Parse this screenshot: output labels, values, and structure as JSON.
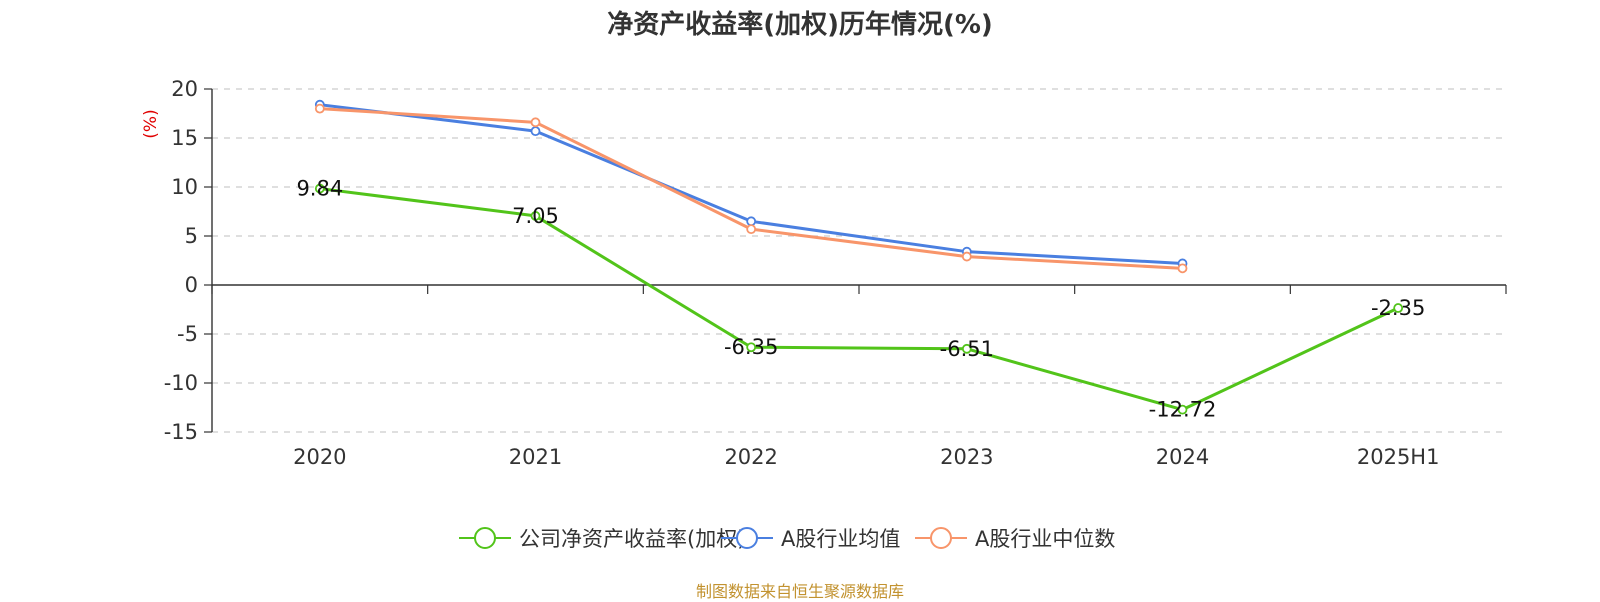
{
  "title": "净资产收益率(加权)历年情况(%)",
  "source": "制图数据来自恒生聚源数据库",
  "chart_data": {
    "type": "line",
    "ylabel": "(%)",
    "ylim": [
      -15,
      20
    ],
    "yticks": [
      20,
      15,
      10,
      5,
      0,
      -5,
      -10,
      -15
    ],
    "grid": true,
    "legend_position": "bottom",
    "categories": [
      "2020",
      "2021",
      "2022",
      "2023",
      "2024",
      "2025H1"
    ],
    "series": [
      {
        "name": "公司净资产收益率(加权)",
        "color": "#52c41a",
        "values": [
          9.84,
          7.05,
          -6.35,
          -6.51,
          -12.72,
          -2.35
        ],
        "labels": [
          "9.84",
          "7.05",
          "-6.35",
          "-6.51",
          "-12.72",
          "-2.35"
        ]
      },
      {
        "name": "A股行业均值",
        "color": "#4a7fe0",
        "values": [
          18.4,
          15.7,
          6.5,
          3.4,
          2.2,
          null
        ]
      },
      {
        "name": "A股行业中位数",
        "color": "#f8956a",
        "values": [
          18.0,
          16.6,
          5.7,
          2.9,
          1.7,
          null
        ]
      }
    ]
  }
}
